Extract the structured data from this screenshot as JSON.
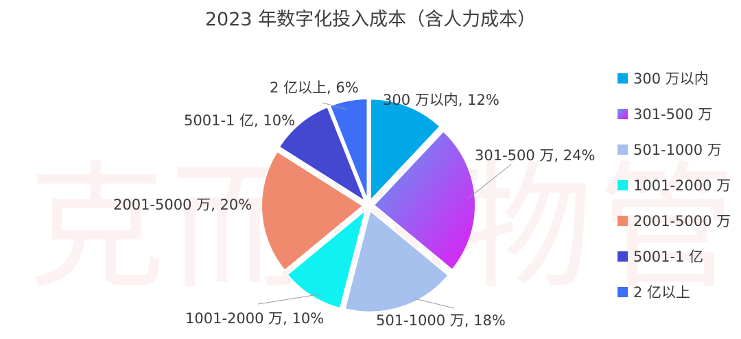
{
  "watermark": "克而瑞物管",
  "chart_data": {
    "type": "pie",
    "title": "2023 年数字化投入成本（含人力成本）",
    "legend_position": "right",
    "slices": [
      {
        "name": "300 万以内",
        "value": 12,
        "label": "300 万以内, 12%",
        "color": "#00a8e8"
      },
      {
        "name": "301-500 万",
        "value": 24,
        "label": "301-500 万, 24%",
        "color": "#b36bff"
      },
      {
        "name": "501-1000 万",
        "value": 18,
        "label": "501-1000 万, 18%",
        "color": "#a6c1ee"
      },
      {
        "name": "1001-2000 万",
        "value": 10,
        "label": "1001-2000 万, 10%",
        "color": "#10f2f2"
      },
      {
        "name": "2001-5000 万",
        "value": 20,
        "label": "2001-5000 万, 20%",
        "color": "#f08a6e"
      },
      {
        "name": "5001-1 亿",
        "value": 10,
        "label": "5001-1 亿, 10%",
        "color": "#4448d0"
      },
      {
        "name": "2 亿以上",
        "value": 6,
        "label": "2 亿以上, 6%",
        "color": "#3d6ef7"
      }
    ]
  }
}
